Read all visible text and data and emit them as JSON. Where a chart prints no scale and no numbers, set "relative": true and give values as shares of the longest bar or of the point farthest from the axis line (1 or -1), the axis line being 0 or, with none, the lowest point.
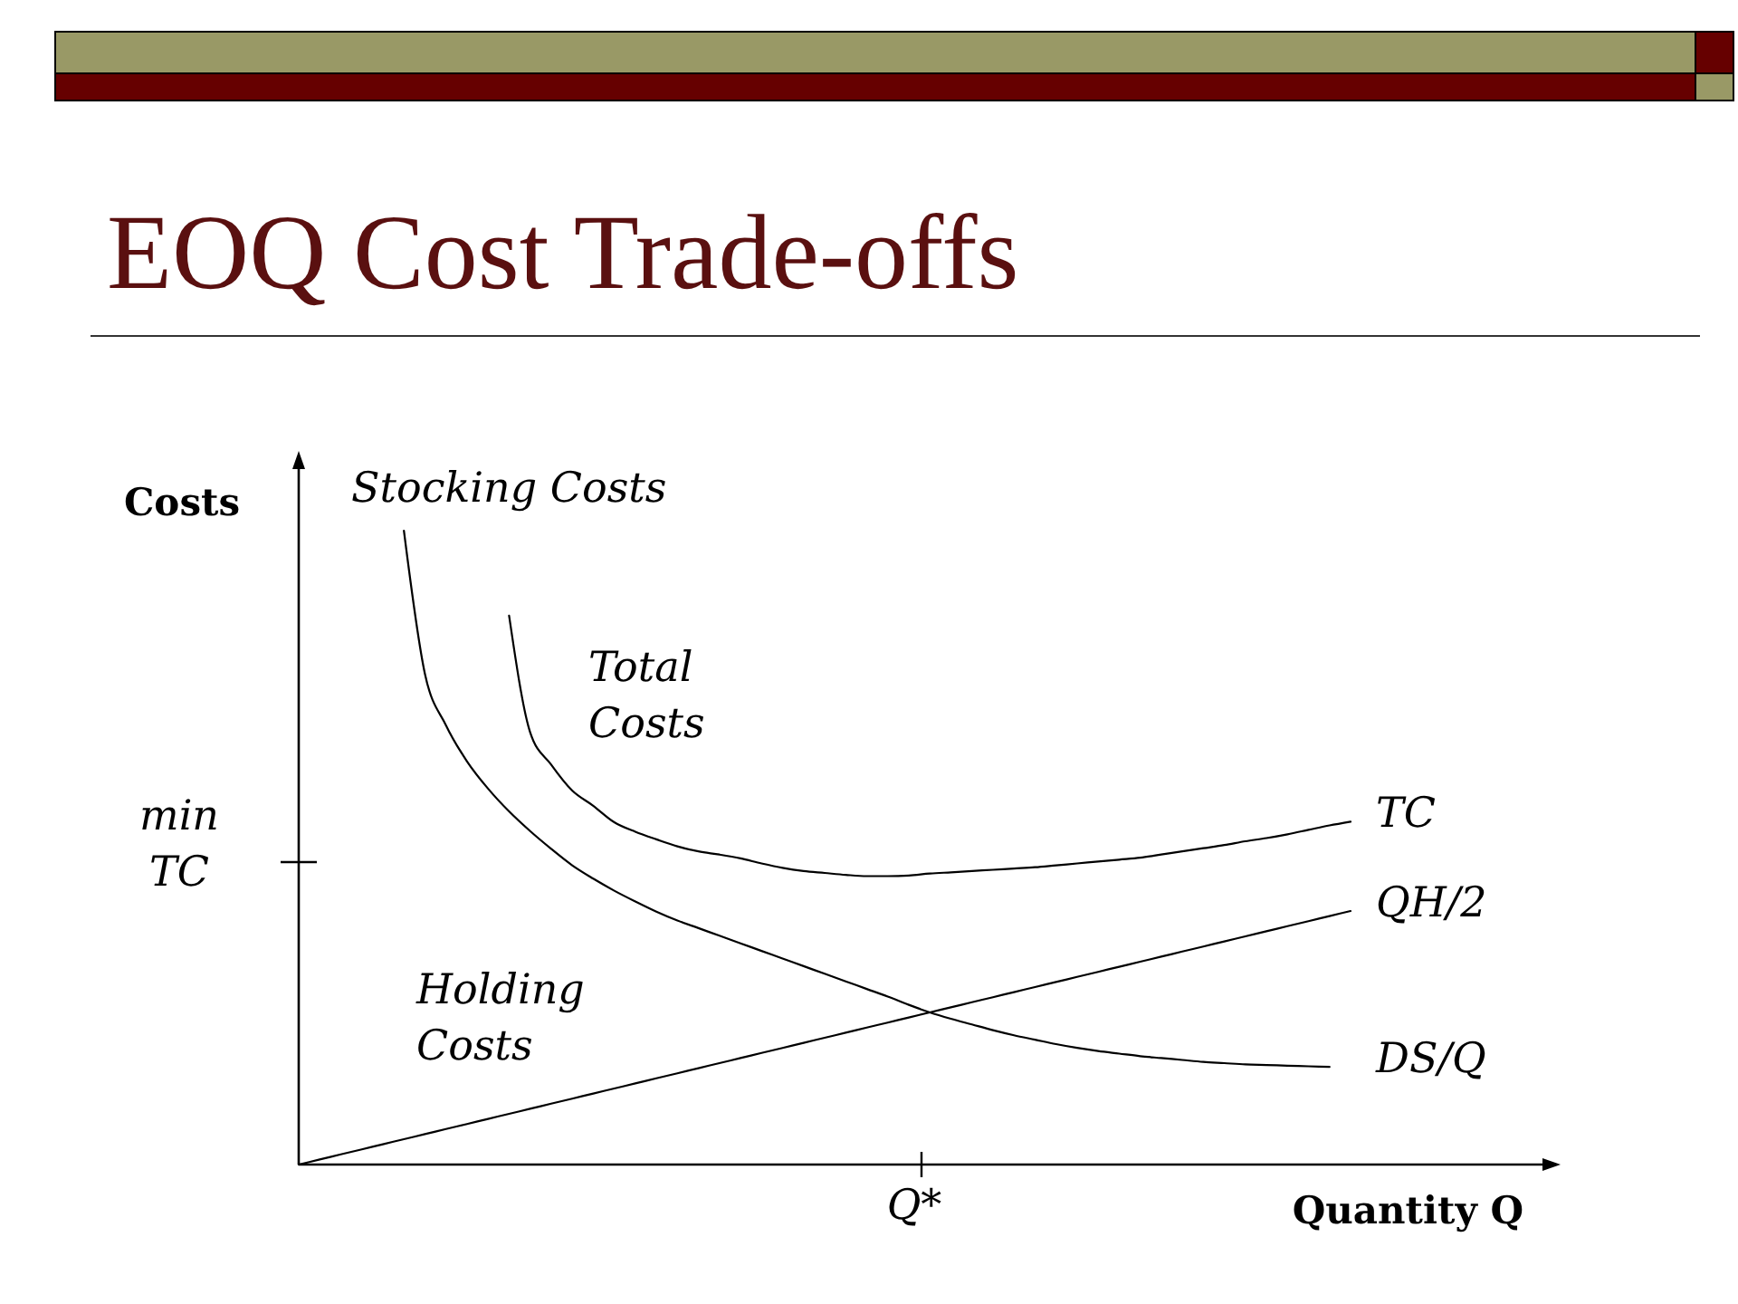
{
  "chart_data": {
    "type": "line",
    "title": "EOQ Cost Trade-offs",
    "xlabel": "Quantity Q",
    "ylabel": "Costs",
    "relative": true,
    "categories": [
      null,
      null,
      null,
      null,
      null,
      null,
      null,
      null,
      null,
      null,
      null,
      null,
      null,
      null,
      null,
      null,
      null,
      null,
      null,
      null,
      null,
      null,
      null,
      null,
      null,
      null,
      null,
      null,
      null,
      null,
      null,
      null,
      null,
      null,
      null,
      null,
      null,
      null,
      null,
      null,
      null,
      null,
      null,
      null,
      null,
      null,
      null,
      null,
      null,
      null,
      null
    ],
    "series": [
      {
        "name": "TC",
        "color": "#000000",
        "values": [
          null,
          null,
          null,
          null,
          null,
          null,
          null,
          null,
          null,
          null,
          0.866,
          0.682,
          0.631,
          0.59,
          0.566,
          0.54,
          0.525,
          0.513,
          0.502,
          0.494,
          0.489,
          0.483,
          0.475,
          0.468,
          0.463,
          0.46,
          0.457,
          0.455,
          0.455,
          0.456,
          0.459,
          0.461,
          0.463,
          0.465,
          0.467,
          0.469,
          0.472,
          0.475,
          0.478,
          0.481,
          0.484,
          0.489,
          0.494,
          0.499,
          0.504,
          0.51,
          0.515,
          0.521,
          0.528,
          0.535,
          0.541
        ]
      },
      {
        "name": "QH/2",
        "color": "#000000",
        "values": [
          0,
          0.008,
          0.016,
          0.024,
          0.032,
          0.04,
          0.048,
          0.056,
          0.064,
          0.072,
          0.08,
          0.088,
          0.096,
          0.104,
          0.112,
          0.12,
          0.128,
          0.136,
          0.144,
          0.152,
          0.16,
          0.168,
          0.176,
          0.184,
          0.192,
          0.2,
          0.208,
          0.216,
          0.224,
          0.232,
          0.24,
          0.248,
          0.256,
          0.264,
          0.272,
          0.28,
          0.288,
          0.296,
          0.304,
          0.312,
          0.32,
          0.328,
          0.336,
          0.344,
          0.352,
          0.36,
          0.368,
          0.376,
          0.384,
          0.392,
          0.4
        ]
      },
      {
        "name": "DS/Q",
        "color": "#000000",
        "values": [
          null,
          null,
          null,
          null,
          null,
          1.0,
          0.774,
          0.693,
          0.636,
          0.593,
          0.557,
          0.526,
          0.498,
          0.472,
          0.451,
          0.432,
          0.415,
          0.399,
          0.385,
          0.373,
          0.361,
          0.349,
          0.337,
          0.325,
          0.313,
          0.301,
          0.289,
          0.277,
          0.265,
          0.252,
          0.24,
          0.23,
          0.221,
          0.212,
          0.204,
          0.197,
          0.19,
          0.184,
          0.179,
          0.175,
          0.171,
          0.168,
          0.165,
          0.162,
          0.16,
          0.158,
          0.157,
          0.156,
          0.155,
          0.154,
          null
        ]
      }
    ],
    "annotations": [
      "Stocking Costs",
      "Total Costs",
      "min TC",
      "Holding Costs",
      "Q*"
    ]
  }
}
